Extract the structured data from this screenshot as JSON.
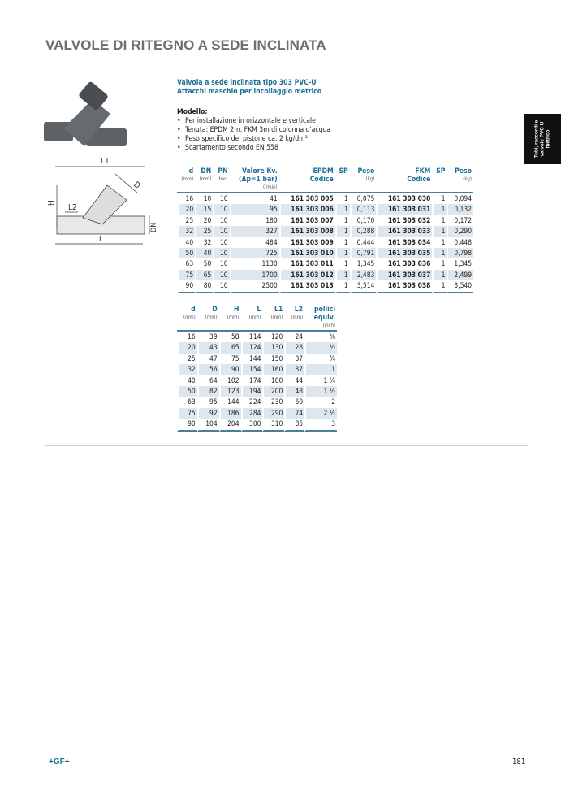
{
  "page_title": "VALVOLE DI RITEGNO A SEDE INCLINATA",
  "product": {
    "line1": "Valvola a sede inclinata tipo 303 PVC-U",
    "line2": "Attacchi maschio per incollaggio metrico"
  },
  "model": {
    "heading": "Modello:",
    "bullets": [
      "Per installazione in orizzontale e verticale",
      "Tenuta: EPDM 2m, FKM 3m di colonna d'acqua",
      "Peso specifico del pistone ca. 2 kg/dm³",
      "Scartamento secondo EN 558"
    ]
  },
  "side_tab": "Tubi, raccordi e valvole PVC-U metrico",
  "drawing_labels": {
    "L1": "L1",
    "D": "D",
    "H": "H",
    "L2": "L2",
    "DN": "DN",
    "L": "L"
  },
  "table1": {
    "headers": [
      {
        "label": "d",
        "unit": "(mm)"
      },
      {
        "label": "DN",
        "unit": "(mm)"
      },
      {
        "label": "PN",
        "unit": "(bar)"
      },
      {
        "label": "Valore Kv.",
        "label2": "(Δp=1 bar)",
        "unit": "(l/min)"
      },
      {
        "label": "EPDM",
        "label2": "Codice",
        "unit": ""
      },
      {
        "label": "SP",
        "unit": ""
      },
      {
        "label": "Peso",
        "unit": "(kg)"
      },
      {
        "label": "FKM",
        "label2": "Codice",
        "unit": ""
      },
      {
        "label": "SP",
        "unit": ""
      },
      {
        "label": "Peso",
        "unit": "(kg)"
      }
    ],
    "rows": [
      [
        "16",
        "10",
        "10",
        "41",
        "161 303 005",
        "1",
        "0,075",
        "161 303 030",
        "1",
        "0,094"
      ],
      [
        "20",
        "15",
        "10",
        "95",
        "161 303 006",
        "1",
        "0,113",
        "161 303 031",
        "1",
        "0,132"
      ],
      [
        "25",
        "20",
        "10",
        "180",
        "161 303 007",
        "1",
        "0,170",
        "161 303 032",
        "1",
        "0,172"
      ],
      [
        "32",
        "25",
        "10",
        "327",
        "161 303 008",
        "1",
        "0,288",
        "161 303 033",
        "1",
        "0,290"
      ],
      [
        "40",
        "32",
        "10",
        "484",
        "161 303 009",
        "1",
        "0,444",
        "161 303 034",
        "1",
        "0,448"
      ],
      [
        "50",
        "40",
        "10",
        "725",
        "161 303 010",
        "1",
        "0,791",
        "161 303 035",
        "1",
        "0,798"
      ],
      [
        "63",
        "50",
        "10",
        "1130",
        "161 303 011",
        "1",
        "1,345",
        "161 303 036",
        "1",
        "1,345"
      ],
      [
        "75",
        "65",
        "10",
        "1700",
        "161 303 012",
        "1",
        "2,483",
        "161 303 037",
        "1",
        "2,499"
      ],
      [
        "90",
        "80",
        "10",
        "2500",
        "161 303 013",
        "1",
        "3,514",
        "161 303 038",
        "1",
        "3,540"
      ]
    ]
  },
  "table2": {
    "headers": [
      {
        "label": "d",
        "unit": "(mm)"
      },
      {
        "label": "D",
        "unit": "(mm)"
      },
      {
        "label": "H",
        "unit": "(mm)"
      },
      {
        "label": "L",
        "unit": "(mm)"
      },
      {
        "label": "L1",
        "unit": "(mm)"
      },
      {
        "label": "L2",
        "unit": "(mm)"
      },
      {
        "label": "pollici",
        "label2": "equiv.",
        "unit": "(inch)"
      }
    ],
    "rows": [
      [
        "16",
        "39",
        "58",
        "114",
        "120",
        "24",
        "⅜"
      ],
      [
        "20",
        "43",
        "65",
        "124",
        "130",
        "28",
        "½"
      ],
      [
        "25",
        "47",
        "75",
        "144",
        "150",
        "37",
        "¾"
      ],
      [
        "32",
        "56",
        "90",
        "154",
        "160",
        "37",
        "1"
      ],
      [
        "40",
        "64",
        "102",
        "174",
        "180",
        "44",
        "1 ¼"
      ],
      [
        "50",
        "82",
        "123",
        "194",
        "200",
        "48",
        "1 ½"
      ],
      [
        "63",
        "95",
        "144",
        "224",
        "230",
        "60",
        "2"
      ],
      [
        "75",
        "92",
        "186",
        "284",
        "290",
        "74",
        "2 ½"
      ],
      [
        "90",
        "104",
        "204",
        "300",
        "310",
        "85",
        "3"
      ]
    ]
  },
  "footer": {
    "logo": "+GF+",
    "page_number": "181"
  },
  "colors": {
    "accent": "#1a6f93",
    "title_gray": "#6d6e71",
    "row_shade": "#dfe7ee"
  }
}
